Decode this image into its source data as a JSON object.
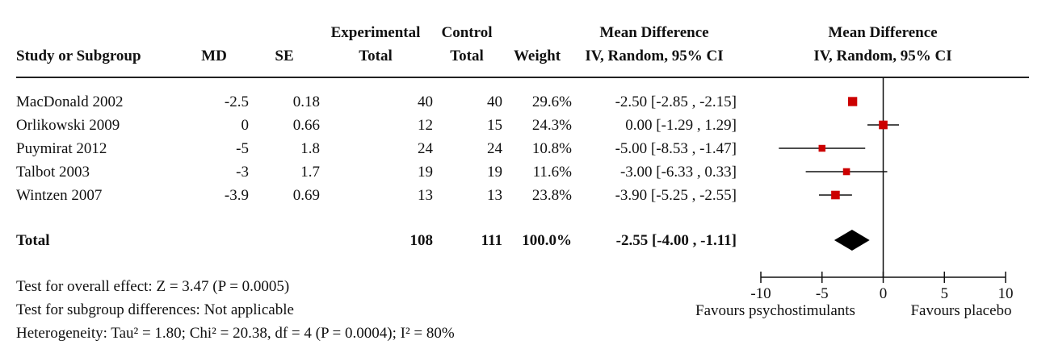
{
  "header": {
    "study": "Study or Subgroup",
    "md": "MD",
    "se": "SE",
    "exp_top": "Experimental",
    "exp_bottom": "Total",
    "ctl_top": "Control",
    "ctl_bottom": "Total",
    "weight": "Weight",
    "md_col_top": "Mean Difference",
    "md_col_bottom": "IV, Random, 95% CI",
    "plot_top": "Mean Difference",
    "plot_bottom": "IV, Random, 95% CI"
  },
  "studies": [
    {
      "name": "MacDonald 2002",
      "md": "-2.5",
      "se": "0.18",
      "exp_total": "40",
      "ctl_total": "40",
      "weight": "29.6%",
      "ci_text": "-2.50 [-2.85 , -2.15]"
    },
    {
      "name": "Orlikowski 2009",
      "md": "0",
      "se": "0.66",
      "exp_total": "12",
      "ctl_total": "15",
      "weight": "24.3%",
      "ci_text": "0.00 [-1.29 , 1.29]"
    },
    {
      "name": "Puymirat 2012",
      "md": "-5",
      "se": "1.8",
      "exp_total": "24",
      "ctl_total": "24",
      "weight": "10.8%",
      "ci_text": "-5.00 [-8.53 , -1.47]"
    },
    {
      "name": "Talbot 2003",
      "md": "-3",
      "se": "1.7",
      "exp_total": "19",
      "ctl_total": "19",
      "weight": "11.6%",
      "ci_text": "-3.00 [-6.33 , 0.33]"
    },
    {
      "name": "Wintzen 2007",
      "md": "-3.9",
      "se": "0.69",
      "exp_total": "13",
      "ctl_total": "13",
      "weight": "23.8%",
      "ci_text": "-3.90 [-5.25 , -2.55]"
    }
  ],
  "total": {
    "label": "Total",
    "exp_total": "108",
    "ctl_total": "111",
    "weight": "100.0%",
    "ci_text": "-2.55 [-4.00 , -1.11]"
  },
  "footer": {
    "overall": "Test for overall effect: Z = 3.47 (P = 0.0005)",
    "subgroup": "Test for subgroup differences: Not applicable",
    "heterogeneity": "Heterogeneity: Tau² = 1.80; Chi² = 20.38, df = 4 (P = 0.0004); I² = 80%"
  },
  "axis": {
    "favours_left": "Favours psychostimulants",
    "favours_right": "Favours placebo"
  },
  "colors": {
    "study_marker": "#cc0000",
    "pooled_marker": "#000000",
    "line": "#111111"
  },
  "chart_data": {
    "type": "forest",
    "xlim": [
      -10,
      10
    ],
    "ticks": [
      -10,
      -5,
      0,
      5,
      10
    ],
    "tick_labels": [
      "-10",
      "-5",
      "0",
      "5",
      "10"
    ],
    "null_line": 0,
    "studies": [
      {
        "name": "MacDonald 2002",
        "estimate": -2.5,
        "lower": -2.85,
        "upper": -2.15,
        "weight": 29.6
      },
      {
        "name": "Orlikowski 2009",
        "estimate": 0.0,
        "lower": -1.29,
        "upper": 1.29,
        "weight": 24.3
      },
      {
        "name": "Puymirat 2012",
        "estimate": -5.0,
        "lower": -8.53,
        "upper": -1.47,
        "weight": 10.8
      },
      {
        "name": "Talbot 2003",
        "estimate": -3.0,
        "lower": -6.33,
        "upper": 0.33,
        "weight": 11.6
      },
      {
        "name": "Wintzen 2007",
        "estimate": -3.9,
        "lower": -5.25,
        "upper": -2.55,
        "weight": 23.8
      }
    ],
    "pooled": {
      "estimate": -2.55,
      "lower": -4.0,
      "upper": -1.11
    }
  }
}
